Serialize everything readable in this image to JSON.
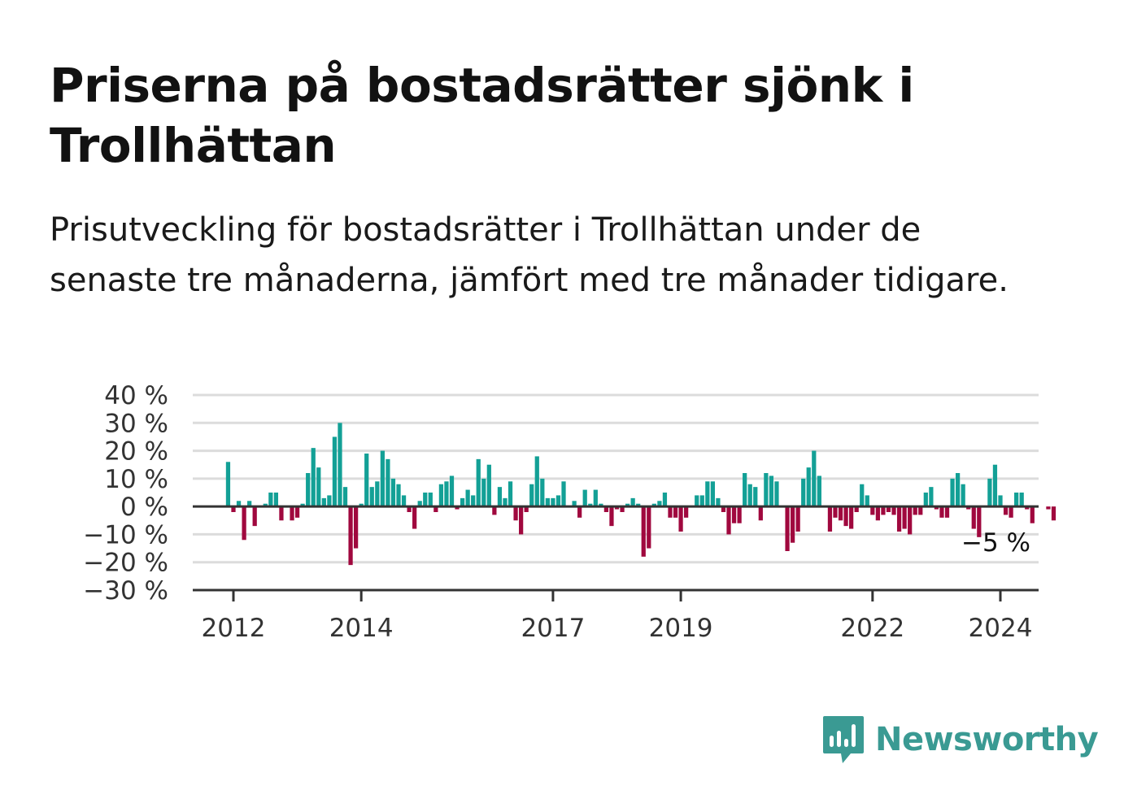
{
  "title": "Priserna på bostadsrätter sjönk i Trollhättan",
  "subtitle": "Prisutveckling för bostadsrätter i Trollhättan under de senaste tre månaderna, jämfört med tre månader tidigare.",
  "colors": {
    "positive": "#13a096",
    "negative": "#a0083e",
    "grid": "#dcdcdc",
    "axis": "#333333",
    "brand": "#3a9a93"
  },
  "logo": {
    "text": "Newsworthy",
    "icon": "newsworthy-chart-bubble-icon"
  },
  "chart_data": {
    "type": "bar",
    "title": "",
    "xlabel": "",
    "ylabel": "",
    "ylim": [
      -30,
      40
    ],
    "yticks": [
      40,
      30,
      20,
      10,
      0,
      -10,
      -20,
      -30
    ],
    "ytick_labels": [
      "40 %",
      "30 %",
      "20 %",
      "10 %",
      "0 %",
      "−10 %",
      "−20 %",
      "−30 %"
    ],
    "xtick_labels": [
      "2012",
      "2014",
      "2017",
      "2019",
      "2022",
      "2024"
    ],
    "x_start": "2011-12",
    "x_end": "2025-02",
    "last_value_label": "−5 %",
    "grid": true,
    "legend": "none",
    "values": [
      16,
      -2,
      2,
      -12,
      2,
      -7,
      0,
      1,
      5,
      5,
      -5,
      0,
      -5,
      -4,
      1,
      12,
      21,
      14,
      3,
      4,
      25,
      30,
      7,
      -21,
      -15,
      1,
      19,
      7,
      9,
      20,
      17,
      10,
      8,
      4,
      -2,
      -8,
      2,
      5,
      5,
      -2,
      8,
      9,
      11,
      -1,
      3,
      6,
      4,
      17,
      10,
      15,
      -3,
      7,
      3,
      9,
      -5,
      -10,
      -2,
      8,
      18,
      10,
      3,
      3,
      4,
      9,
      0,
      2,
      -4,
      6,
      1,
      6,
      1,
      -2,
      -7,
      -1,
      -2,
      1,
      3,
      1,
      -18,
      -15,
      1,
      2,
      5,
      -4,
      -4,
      -9,
      -4,
      0,
      4,
      4,
      9,
      9,
      3,
      -2,
      -10,
      -6,
      -6,
      12,
      8,
      7,
      -5,
      12,
      11,
      9,
      0,
      -16,
      -13,
      -9,
      10,
      14,
      20,
      11,
      0,
      -9,
      -4,
      -5,
      -7,
      -8,
      -2,
      8,
      4,
      -3,
      -5,
      -3,
      -2,
      -3,
      -9,
      -8,
      -10,
      -3,
      -3,
      5,
      7,
      -1,
      -4,
      -4,
      10,
      12,
      8,
      -1,
      -8,
      -11,
      0,
      10,
      15,
      4,
      -3,
      -4,
      5,
      5,
      -1,
      -6,
      0,
      0,
      -1,
      -5
    ]
  }
}
